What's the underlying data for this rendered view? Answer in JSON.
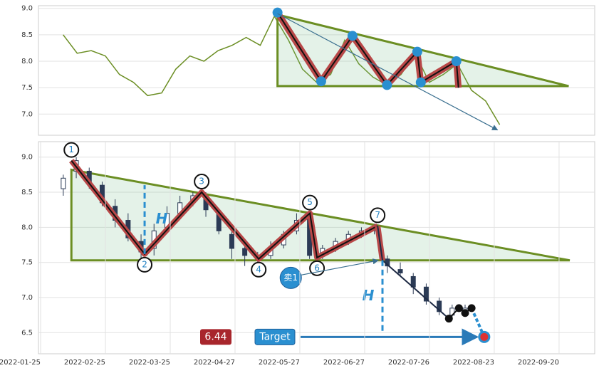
{
  "chart_data": [
    {
      "type": "line",
      "x": [
        7,
        11,
        15,
        19,
        23,
        27,
        31,
        35,
        39,
        43,
        47,
        51,
        55,
        59,
        63,
        67,
        71,
        75,
        79,
        83,
        87,
        91,
        95,
        99,
        103,
        107,
        111,
        115,
        119,
        123,
        127,
        131
      ],
      "series": [
        {
          "color": "#6b8e23",
          "values": [
            8.5,
            8.15,
            8.2,
            8.1,
            7.75,
            7.6,
            7.35,
            7.4,
            7.85,
            8.1,
            8.0,
            8.2,
            8.3,
            8.45,
            8.3,
            8.85,
            8.4,
            7.85,
            7.6,
            7.75,
            8.4,
            7.95,
            7.7,
            7.55,
            7.75,
            8.15,
            7.6,
            7.75,
            7.95,
            7.45,
            7.25,
            6.8
          ]
        }
      ],
      "xlim": [
        0,
        158
      ],
      "ylim": [
        6.6,
        9.05
      ],
      "yticks": [
        {
          "value": 7,
          "label": "7.0"
        },
        7.5,
        {
          "value": 8,
          "label": "8.0"
        },
        8.5,
        {
          "value": 9,
          "label": "9.0"
        }
      ],
      "grid": true,
      "pattern": {
        "x": [
          67.9,
          80.3,
          89.2,
          99,
          107.6,
          108.6,
          118.7,
          119.3
        ],
        "y": [
          8.92,
          7.62,
          8.48,
          7.55,
          8.18,
          7.6,
          8.0,
          7.5
        ]
      },
      "triangle": {
        "x": [
          67.9,
          150.6
        ],
        "y": [
          8.88,
          7.53
        ]
      },
      "arrow": {
        "x": [
          67.9,
          130.4
        ],
        "y": [
          8.9,
          6.7
        ]
      }
    },
    {
      "type": "candlestick",
      "x": [
        7,
        11,
        15,
        19,
        23,
        27,
        31,
        35,
        39,
        43,
        47,
        51,
        55,
        59,
        63,
        67,
        71,
        75,
        79,
        83,
        87,
        91,
        95,
        99,
        103,
        107,
        111,
        115,
        119,
        123,
        127,
        131
      ],
      "open": [
        8.55,
        8.8,
        8.8,
        8.6,
        8.3,
        8.1,
        7.8,
        7.7,
        8.0,
        8.2,
        8.35,
        8.4,
        8.2,
        7.9,
        7.7,
        7.55,
        7.6,
        7.75,
        7.95,
        8.15,
        7.6,
        7.7,
        7.8,
        7.9,
        7.95,
        7.55,
        7.4,
        7.3,
        7.15,
        6.95,
        6.75,
        6.8
      ],
      "high": [
        8.75,
        9.0,
        8.85,
        8.65,
        8.4,
        8.2,
        7.9,
        8.05,
        8.3,
        8.45,
        8.5,
        8.5,
        8.25,
        7.95,
        7.75,
        7.65,
        7.8,
        7.95,
        8.2,
        8.2,
        7.75,
        7.85,
        7.95,
        8.0,
        8.05,
        7.6,
        7.5,
        7.35,
        7.2,
        7.0,
        6.9,
        6.9
      ],
      "low": [
        8.45,
        8.7,
        8.55,
        8.3,
        8.0,
        7.8,
        7.55,
        7.6,
        7.95,
        8.15,
        8.3,
        8.15,
        7.9,
        7.55,
        7.45,
        7.4,
        7.55,
        7.7,
        7.9,
        7.55,
        7.55,
        7.65,
        7.75,
        7.85,
        7.9,
        7.35,
        7.3,
        7.05,
        6.9,
        6.75,
        6.7,
        6.75
      ],
      "close": [
        8.7,
        8.95,
        8.65,
        8.35,
        8.1,
        7.85,
        7.65,
        7.95,
        8.2,
        8.35,
        8.45,
        8.25,
        7.95,
        7.7,
        7.6,
        7.55,
        7.7,
        7.9,
        8.1,
        7.6,
        7.7,
        7.8,
        7.9,
        7.95,
        8.0,
        7.45,
        7.35,
        7.15,
        6.95,
        6.8,
        6.85,
        6.85
      ],
      "xlim": [
        -0.66,
        171
      ],
      "ylim": [
        6.2,
        9.22
      ],
      "xticks": [
        {
          "value": 0,
          "label": "2022-01-25"
        },
        {
          "value": 20,
          "label": "2022-02-25"
        },
        {
          "value": 40,
          "label": "2022-03-25"
        },
        {
          "value": 60,
          "label": "2022-04-27"
        },
        {
          "value": 80,
          "label": "2022-05-27"
        },
        {
          "value": 100,
          "label": "2022-06-27"
        },
        {
          "value": 120,
          "label": "2022-07-26"
        },
        {
          "value": 140,
          "label": "2022-08-23"
        },
        {
          "value": 160,
          "label": "2022-09-20"
        }
      ],
      "yticks": [
        6.5,
        {
          "value": 7,
          "label": "7.0"
        },
        7.5,
        {
          "value": 8,
          "label": "8.0"
        },
        8.5,
        {
          "value": 9,
          "label": "9.0"
        }
      ],
      "grid": true,
      "pattern": {
        "x": [
          9.5,
          32.1,
          49.7,
          67.3,
          83.1,
          85.3,
          104
        ],
        "y": [
          8.95,
          7.62,
          8.5,
          7.55,
          8.2,
          7.57,
          8.02
        ],
        "labels": [
          "1",
          "2",
          "3",
          "4",
          "5",
          "6",
          "7"
        ]
      },
      "triangle": {
        "x": [
          9.5,
          163.3
        ],
        "y": [
          8.82,
          7.53
        ]
      },
      "breakdown": {
        "x": [
          104,
          105.5,
          126
        ],
        "y": [
          8.02,
          7.53,
          6.7
        ]
      },
      "points": {
        "x": [
          126,
          129.1,
          131,
          133
        ],
        "y": [
          6.7,
          6.85,
          6.78,
          6.85
        ]
      },
      "measures": [
        {
          "label": "H",
          "x": 32.1,
          "y": [
            7.62,
            8.6
          ]
        },
        {
          "label": "H",
          "x": 105.5,
          "y": [
            7.53,
            6.5
          ]
        }
      ],
      "signal": {
        "label": "卖1",
        "x": 77.2,
        "y": 7.28
      },
      "target": {
        "label": "Target",
        "x": 136.9,
        "value": 6.44
      }
    }
  ]
}
